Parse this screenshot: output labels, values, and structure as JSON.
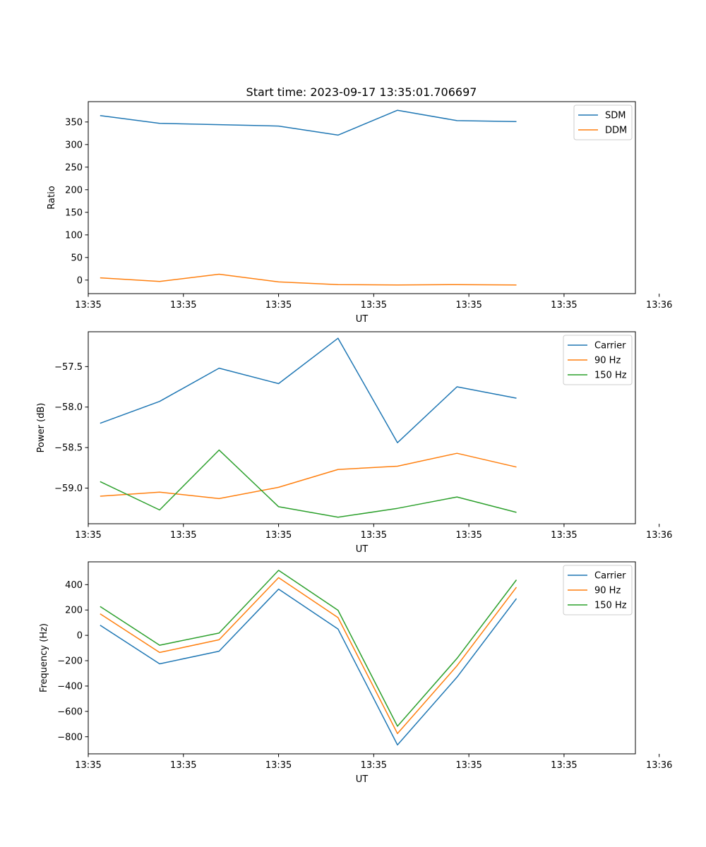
{
  "figure": {
    "title": "Start time: 2023-09-17 13:35:01.706697"
  },
  "colors": {
    "blue": "#1f77b4",
    "orange": "#ff7f0e",
    "green": "#2ca02c"
  },
  "chart_data": [
    {
      "type": "line",
      "title": "Start time: 2023-09-17 13:35:01.706697",
      "xlabel": "UT",
      "ylabel": "Ratio",
      "x": [
        1,
        2,
        3,
        4,
        5,
        6,
        7,
        8
      ],
      "xlim": [
        0.8,
        10
      ],
      "xticks": [
        0.8,
        2.4,
        4.0,
        5.6,
        7.2,
        8.8,
        10.4
      ],
      "xtick_labels": [
        "13:35",
        "13:35",
        "13:35",
        "13:35",
        "13:35",
        "13:35",
        "13:36"
      ],
      "ylim": [
        -30,
        395
      ],
      "yticks": [
        0,
        50,
        100,
        150,
        200,
        250,
        300,
        350
      ],
      "ytick_labels": [
        "0",
        "50",
        "100",
        "150",
        "200",
        "250",
        "300",
        "350"
      ],
      "legend": "top-right",
      "series": [
        {
          "name": "SDM",
          "color": "#1f77b4",
          "values": [
            364,
            347,
            344,
            341,
            321,
            376,
            353,
            351
          ]
        },
        {
          "name": "DDM",
          "color": "#ff7f0e",
          "values": [
            5,
            -3,
            13,
            -4,
            -10,
            -11,
            -10,
            -11
          ]
        }
      ]
    },
    {
      "type": "line",
      "title": "",
      "xlabel": "UT",
      "ylabel": "Power (dB)",
      "x": [
        1,
        2,
        3,
        4,
        5,
        6,
        7,
        8
      ],
      "xlim": [
        0.8,
        10
      ],
      "xticks": [
        0.8,
        2.4,
        4.0,
        5.6,
        7.2,
        8.8,
        10.4
      ],
      "xtick_labels": [
        "13:35",
        "13:35",
        "13:35",
        "13:35",
        "13:35",
        "13:35",
        "13:36"
      ],
      "ylim": [
        -59.44,
        -57.07
      ],
      "yticks": [
        -59.0,
        -58.5,
        -58.0,
        -57.5
      ],
      "ytick_labels": [
        "−59.0",
        "−58.5",
        "−58.0",
        "−57.5"
      ],
      "legend": "top-right",
      "series": [
        {
          "name": "Carrier",
          "color": "#1f77b4",
          "values": [
            -58.2,
            -57.93,
            -57.52,
            -57.71,
            -57.15,
            -58.44,
            -57.75,
            -57.89
          ]
        },
        {
          "name": "90 Hz",
          "color": "#ff7f0e",
          "values": [
            -59.1,
            -59.05,
            -59.13,
            -58.99,
            -58.77,
            -58.73,
            -58.57,
            -58.74
          ]
        },
        {
          "name": "150 Hz",
          "color": "#2ca02c",
          "values": [
            -58.92,
            -59.27,
            -58.53,
            -59.23,
            -59.36,
            -59.25,
            -59.11,
            -59.3
          ]
        }
      ]
    },
    {
      "type": "line",
      "title": "",
      "xlabel": "UT",
      "ylabel": "Frequency (Hz)",
      "x": [
        1,
        2,
        3,
        4,
        5,
        6,
        7,
        8
      ],
      "xlim": [
        0.8,
        10
      ],
      "xticks": [
        0.8,
        2.4,
        4.0,
        5.6,
        7.2,
        8.8,
        10.4
      ],
      "xtick_labels": [
        "13:35",
        "13:35",
        "13:35",
        "13:35",
        "13:35",
        "13:35",
        "13:36"
      ],
      "ylim": [
        -935,
        580
      ],
      "yticks": [
        -800,
        -600,
        -400,
        -200,
        0,
        200,
        400
      ],
      "ytick_labels": [
        "−800",
        "−600",
        "−400",
        "−200",
        "0",
        "200",
        "400"
      ],
      "legend": "top-right",
      "series": [
        {
          "name": "Carrier",
          "color": "#1f77b4",
          "values": [
            80,
            -225,
            -125,
            365,
            50,
            -865,
            -330,
            290
          ]
        },
        {
          "name": "90 Hz",
          "color": "#ff7f0e",
          "values": [
            170,
            -135,
            -35,
            455,
            140,
            -775,
            -240,
            380
          ]
        },
        {
          "name": "150 Hz",
          "color": "#2ca02c",
          "values": [
            228,
            -78,
            18,
            513,
            198,
            -717,
            -182,
            438
          ]
        }
      ]
    }
  ]
}
